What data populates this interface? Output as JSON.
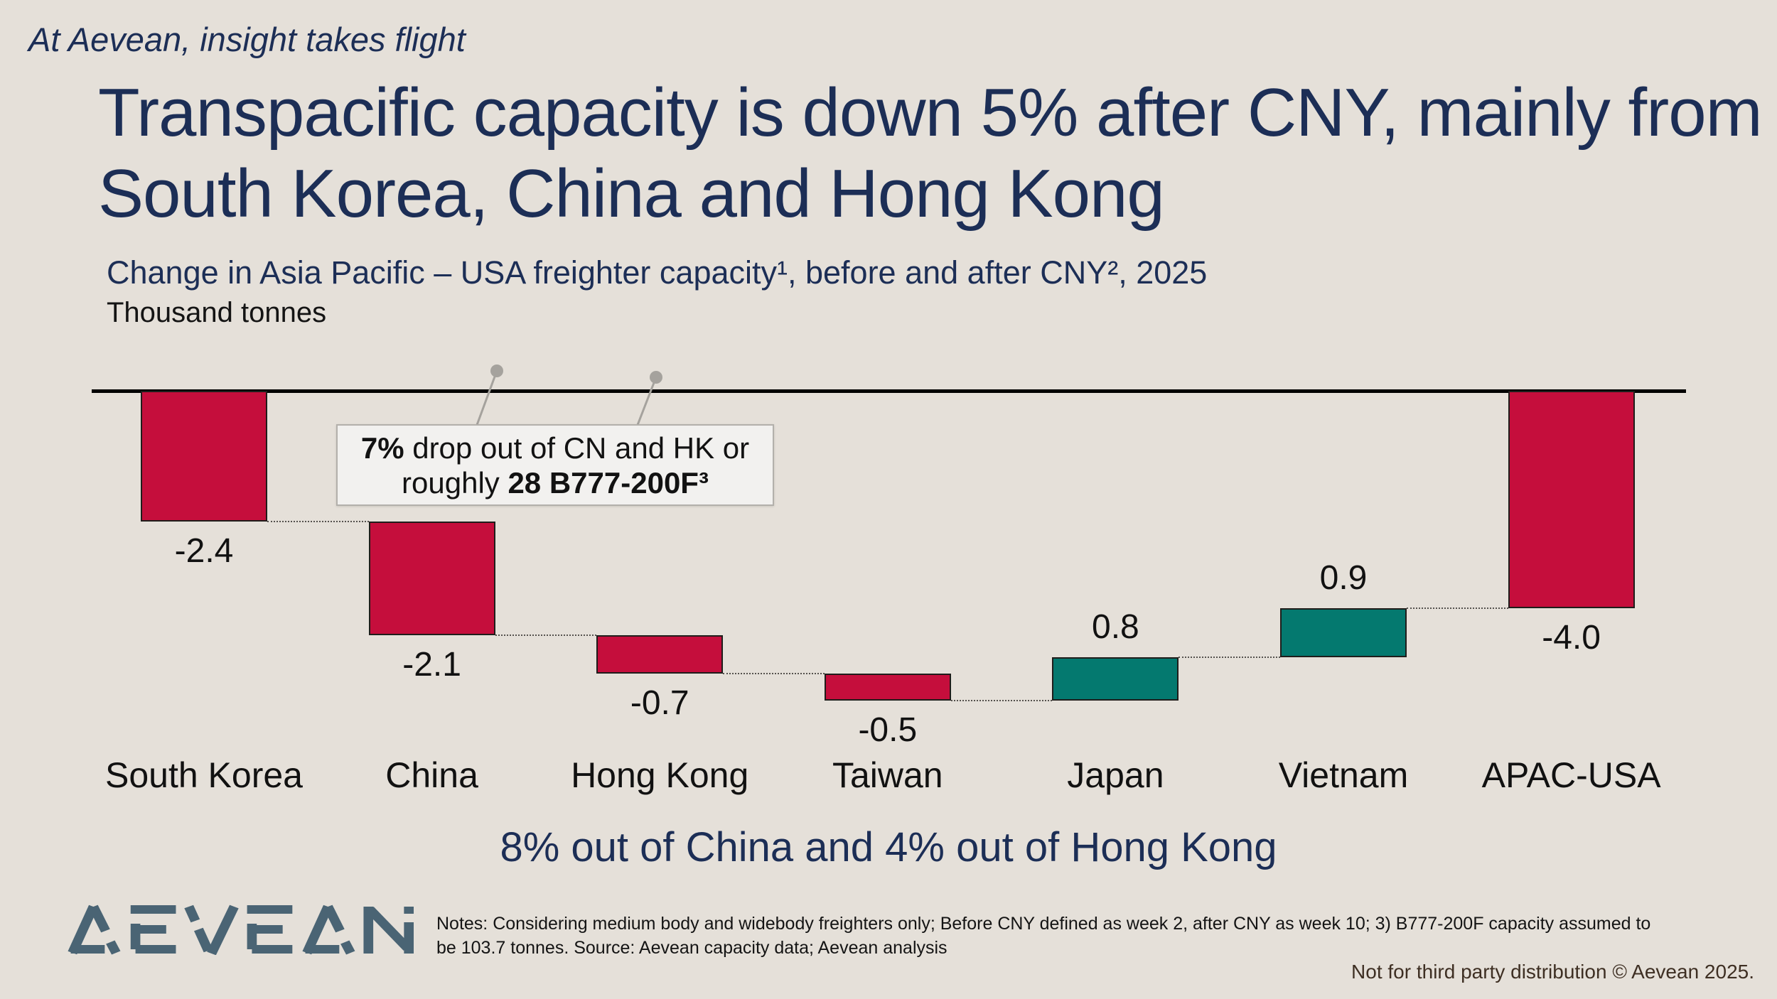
{
  "slide": {
    "tagline": "At Aevean, insight takes flight",
    "title_lines": [
      "Transpacific capacity is down 5% after CNY, mainly from",
      "South Korea, China and Hong Kong"
    ],
    "chart_title": "Change in Asia Pacific – USA freighter capacity¹, before and after CNY², 2025",
    "unit_label": "Thousand tonnes",
    "takeaway": "8% out of China and 4% out of Hong Kong",
    "notes_lines": [
      "Notes: Considering medium body and widebody freighters only; Before CNY defined as week 2, after CNY as week 10; 3) B777-200F capacity assumed to",
      "be 103.7 tonnes. Source: Aevean capacity data; Aevean analysis"
    ],
    "footer": "Not for third party distribution © Aevean 2025.",
    "logo_text": "AEVEAN"
  },
  "callout": {
    "line1_bold": "7%",
    "line1_rest": " drop out of CN and HK or",
    "line2_rest": "roughly ",
    "line2_bold": "28 B777-200F³"
  },
  "chart_data": {
    "type": "bar",
    "subtype": "waterfall",
    "title": "Change in Asia Pacific – USA freighter capacity¹, before and after CNY², 2025",
    "ylabel": "Thousand tonnes",
    "categories": [
      "South Korea",
      "China",
      "Hong Kong",
      "Taiwan",
      "Japan",
      "Vietnam",
      "APAC-USA"
    ],
    "values": [
      -2.4,
      -2.1,
      -0.7,
      -0.5,
      0.8,
      0.9,
      -4.0
    ],
    "value_labels": [
      "-2.4",
      "-2.1",
      "-0.7",
      "-0.5",
      "0.8",
      "0.9",
      "-4.0"
    ],
    "bar_kinds": [
      "delta",
      "delta",
      "delta",
      "delta",
      "delta",
      "delta",
      "total"
    ],
    "baseline": 0,
    "annotation": "7% drop out of CN and HK or roughly 28 B777-200F³",
    "negative_color": "#c50e3c",
    "positive_color": "#04796f",
    "grid": false,
    "legend": false
  },
  "colors": {
    "background": "#e5e0d9",
    "navy": "#1c2e56",
    "crimson": "#c50e3c",
    "teal": "#04796f",
    "text_black": "#141414",
    "footer_brown": "#3e2f23",
    "logo_steel": "#4a6474",
    "callout_bg": "#f2f1ef",
    "callout_border": "#b3b0ab",
    "leader_grey": "#a5a29d"
  }
}
